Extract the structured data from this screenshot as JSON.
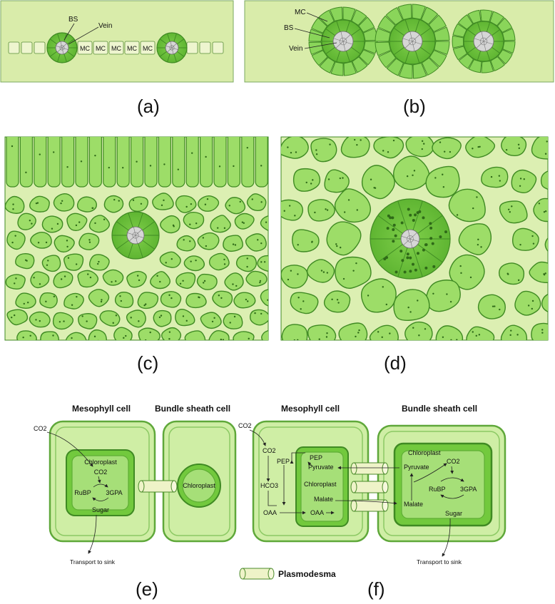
{
  "panels": {
    "a": {
      "letter": "(a)",
      "labels": {
        "bs": "BS",
        "vein": "Vein",
        "mc": "MC"
      }
    },
    "b": {
      "letter": "(b)",
      "labels": {
        "mc": "MC",
        "bs": "BS",
        "vein": "Vein"
      }
    },
    "c": {
      "letter": "(c)"
    },
    "d": {
      "letter": "(d)"
    },
    "e": {
      "letter": "(e)",
      "title_left": "Mesophyll cell",
      "title_right": "Bundle sheath cell",
      "co2_outside": "CO2",
      "chloroplast": "Chloroplast",
      "co2_inside": "CO2",
      "rubp": "RuBP",
      "gpa": "3GPA",
      "sugar": "Sugar",
      "transport": "Transport to sink",
      "bs_chloroplast": "Chloroplast"
    },
    "f": {
      "letter": "(f)",
      "title_left": "Mesophyll cell",
      "title_right": "Bundle sheath cell",
      "co2_outside": "CO2",
      "co2_cyt": "CO2",
      "pep_cyt": "PEP",
      "hco3": "HCO3",
      "oaa_cyt": "OAA",
      "pep_chl": "PEP",
      "pyruvate_chl": "Pyruvate",
      "chloroplast": "Chloroplast",
      "malate_chl": "Malate",
      "oaa_chl": "OAA",
      "bs_chloroplast": "Chloroplast",
      "bs_pyruvate": "Pyruvate",
      "bs_co2": "CO2",
      "bs_rubp": "RuBP",
      "bs_gpa": "3GPA",
      "bs_malate": "Malate",
      "bs_sugar": "Sugar",
      "transport": "Transport to sink"
    }
  },
  "legend": {
    "plasmodesma": "Plasmodesma"
  },
  "colors": {
    "panel_bg": "#d9ecaa",
    "cell_fill": "#9ddd68",
    "cell_light": "#cfeea5",
    "cell_stroke": "#3f8a23",
    "vein_fill": "#d6d6d6",
    "chloroplast_fill": "#72c93d",
    "plasmodesma_fill": "#eef3c8"
  }
}
